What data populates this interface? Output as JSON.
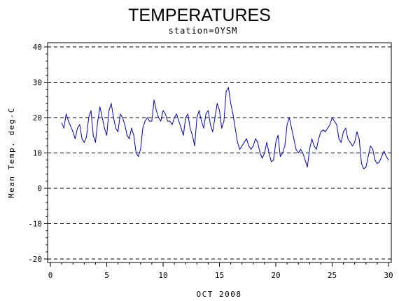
{
  "chart_data": {
    "type": "line",
    "title": "TEMPERATURES",
    "subtitle": "station=OYSM",
    "xlabel": "OCT 2008",
    "ylabel": "Mean Temp. deg-C",
    "xlim": [
      0,
      30
    ],
    "ylim": [
      -20,
      40
    ],
    "xticks": [
      0,
      5,
      10,
      15,
      20,
      25,
      30
    ],
    "yticks": [
      -20,
      -10,
      0,
      10,
      20,
      30,
      40
    ],
    "grid": "horizontal dashed",
    "line_color": "#0000cc",
    "series": [
      {
        "name": "",
        "x": [
          1.0,
          1.2,
          1.4,
          1.6,
          1.8,
          2.0,
          2.2,
          2.4,
          2.6,
          2.8,
          3.0,
          3.2,
          3.4,
          3.6,
          3.8,
          4.0,
          4.2,
          4.4,
          4.6,
          4.8,
          5.0,
          5.2,
          5.4,
          5.6,
          5.8,
          6.0,
          6.2,
          6.4,
          6.6,
          6.8,
          7.0,
          7.2,
          7.4,
          7.6,
          7.8,
          8.0,
          8.2,
          8.4,
          8.6,
          8.8,
          9.0,
          9.2,
          9.4,
          9.6,
          9.8,
          10.0,
          10.2,
          10.4,
          10.6,
          10.8,
          11.0,
          11.2,
          11.4,
          11.6,
          11.8,
          12.0,
          12.2,
          12.4,
          12.6,
          12.8,
          13.0,
          13.2,
          13.4,
          13.6,
          13.8,
          14.0,
          14.2,
          14.4,
          14.6,
          14.8,
          15.0,
          15.2,
          15.4,
          15.6,
          15.8,
          16.0,
          16.2,
          16.4,
          16.6,
          16.8,
          17.0,
          17.2,
          17.4,
          17.6,
          17.8,
          18.0,
          18.2,
          18.4,
          18.6,
          18.8,
          19.0,
          19.2,
          19.4,
          19.6,
          19.8,
          20.0,
          20.2,
          20.4,
          20.6,
          20.8,
          21.0,
          21.2,
          21.4,
          21.6,
          21.8,
          22.0,
          22.2,
          22.4,
          22.6,
          22.8,
          23.0,
          23.2,
          23.4,
          23.6,
          23.8,
          24.0,
          24.2,
          24.4,
          24.6,
          24.8,
          25.0,
          25.2,
          25.4,
          25.6,
          25.8,
          26.0,
          26.2,
          26.4,
          26.6,
          26.8,
          27.0,
          27.2,
          27.4,
          27.6,
          27.8,
          28.0,
          28.2,
          28.4,
          28.6,
          28.8,
          29.0,
          29.2,
          29.4,
          29.6,
          29.8,
          30.0
        ],
        "y": [
          18.5,
          17.0,
          21.0,
          19.0,
          17.5,
          16.0,
          14.0,
          17.0,
          18.0,
          14.0,
          13.0,
          14.5,
          20.0,
          22.0,
          15.0,
          13.0,
          19.0,
          23.0,
          20.0,
          17.0,
          15.0,
          22.0,
          24.0,
          20.0,
          17.0,
          16.0,
          21.0,
          20.0,
          18.0,
          15.0,
          14.0,
          17.0,
          15.0,
          10.0,
          9.0,
          11.0,
          17.0,
          19.0,
          20.0,
          19.0,
          19.0,
          25.0,
          22.0,
          20.0,
          19.0,
          22.0,
          21.0,
          19.0,
          19.0,
          18.0,
          20.0,
          21.0,
          19.0,
          17.0,
          15.0,
          20.0,
          21.0,
          17.0,
          15.0,
          12.0,
          20.0,
          22.0,
          19.0,
          17.0,
          21.0,
          22.0,
          18.0,
          16.0,
          20.0,
          24.0,
          22.0,
          17.0,
          19.0,
          27.5,
          28.5,
          24.0,
          21.0,
          17.0,
          13.0,
          11.0,
          12.0,
          13.0,
          14.0,
          12.0,
          11.0,
          12.0,
          14.0,
          13.0,
          10.0,
          8.5,
          10.0,
          13.0,
          10.0,
          7.5,
          8.0,
          13.0,
          15.0,
          9.0,
          10.0,
          12.0,
          18.0,
          20.0,
          17.0,
          14.0,
          11.0,
          10.0,
          11.0,
          10.0,
          8.0,
          6.0,
          11.0,
          14.0,
          12.0,
          11.0,
          14.0,
          16.0,
          16.5,
          16.0,
          17.0,
          18.0,
          20.0,
          19.0,
          18.0,
          14.0,
          13.0,
          16.0,
          17.0,
          14.0,
          13.0,
          12.0,
          13.0,
          16.0,
          14.0,
          7.0,
          5.5,
          6.0,
          9.0,
          12.0,
          11.0,
          8.0,
          7.0,
          7.5,
          9.0,
          10.5,
          9.0,
          8.0
        ]
      }
    ]
  }
}
